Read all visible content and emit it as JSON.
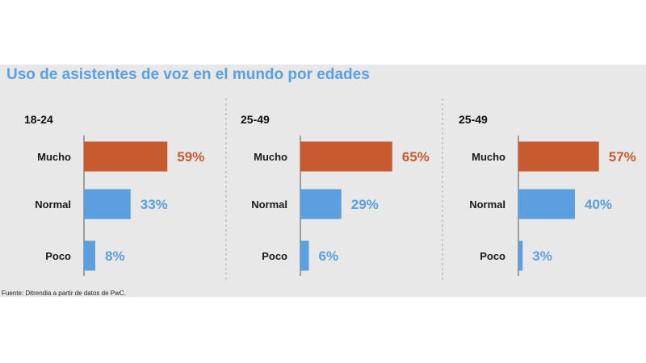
{
  "title": "Uso de asistentes de voz en el mundo por edades",
  "source": "Fuente: Ditrendia a partir de datos de PwC.",
  "colors": {
    "accent": "#c85a30",
    "primary": "#5a9fe0",
    "background": "#e8e8e8"
  },
  "chart_data": [
    {
      "type": "bar",
      "orientation": "horizontal",
      "group": "18-24",
      "categories": [
        "Mucho",
        "Normal",
        "Poco"
      ],
      "values": [
        59,
        33,
        8
      ],
      "value_labels": [
        "59%",
        "33%",
        "8%"
      ],
      "bar_colors": [
        "#c85a30",
        "#5a9fe0",
        "#5a9fe0"
      ],
      "xlim": [
        0,
        100
      ]
    },
    {
      "type": "bar",
      "orientation": "horizontal",
      "group": "25-49",
      "categories": [
        "Mucho",
        "Normal",
        "Poco"
      ],
      "values": [
        65,
        29,
        6
      ],
      "value_labels": [
        "65%",
        "29%",
        "6%"
      ],
      "bar_colors": [
        "#c85a30",
        "#5a9fe0",
        "#5a9fe0"
      ],
      "xlim": [
        0,
        100
      ]
    },
    {
      "type": "bar",
      "orientation": "horizontal",
      "group": "25-49",
      "categories": [
        "Mucho",
        "Normal",
        "Poco"
      ],
      "values": [
        57,
        40,
        3
      ],
      "value_labels": [
        "57%",
        "40%",
        "3%"
      ],
      "bar_colors": [
        "#c85a30",
        "#5a9fe0",
        "#5a9fe0"
      ],
      "xlim": [
        0,
        100
      ]
    }
  ]
}
